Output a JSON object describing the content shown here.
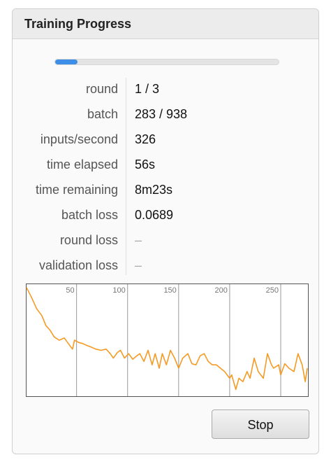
{
  "header": {
    "title": "Training Progress"
  },
  "progress": 0.1,
  "stats": [
    {
      "label": "round",
      "value": "1 / 3"
    },
    {
      "label": "batch",
      "value": "283 / 938"
    },
    {
      "label": "inputs/second",
      "value": "326"
    },
    {
      "label": "time elapsed",
      "value": "56s"
    },
    {
      "label": "time remaining",
      "value": "8m23s"
    },
    {
      "label": "batch loss",
      "value": "0.0689"
    },
    {
      "label": "round loss",
      "value": "–"
    },
    {
      "label": "validation loss",
      "value": "–"
    }
  ],
  "chart_data": {
    "type": "line",
    "color": "#f59a23",
    "x": [
      1,
      6,
      11,
      16,
      20,
      24,
      28,
      33,
      38,
      42,
      46,
      48,
      52,
      56,
      61,
      64,
      69,
      74,
      79,
      83,
      86,
      90,
      93,
      97,
      101,
      105,
      109,
      112,
      116,
      120,
      124,
      127,
      131,
      134,
      138,
      142,
      146,
      150,
      154,
      159,
      163,
      167,
      171,
      175,
      179,
      183,
      187,
      191,
      195,
      200,
      202,
      206,
      209,
      213,
      217,
      220,
      224,
      228,
      233,
      237,
      241,
      243,
      248,
      250,
      254,
      258,
      263,
      267,
      271,
      274,
      276
    ],
    "values": [
      0.97,
      0.88,
      0.78,
      0.72,
      0.63,
      0.59,
      0.53,
      0.5,
      0.52,
      0.47,
      0.42,
      0.5,
      0.48,
      0.47,
      0.45,
      0.44,
      0.42,
      0.41,
      0.42,
      0.38,
      0.34,
      0.39,
      0.41,
      0.34,
      0.38,
      0.33,
      0.36,
      0.38,
      0.31,
      0.41,
      0.28,
      0.38,
      0.25,
      0.38,
      0.28,
      0.41,
      0.34,
      0.25,
      0.34,
      0.38,
      0.29,
      0.28,
      0.36,
      0.38,
      0.31,
      0.28,
      0.28,
      0.25,
      0.22,
      0.16,
      0.19,
      0.06,
      0.16,
      0.13,
      0.22,
      0.16,
      0.34,
      0.22,
      0.16,
      0.38,
      0.28,
      0.25,
      0.28,
      0.19,
      0.29,
      0.25,
      0.22,
      0.38,
      0.28,
      0.13,
      0.25
    ],
    "xlim": [
      1,
      276
    ],
    "ylim": [
      0,
      1
    ],
    "xticks": [
      50,
      100,
      150,
      200,
      250
    ],
    "grid": true
  },
  "button": {
    "label": "Stop"
  }
}
